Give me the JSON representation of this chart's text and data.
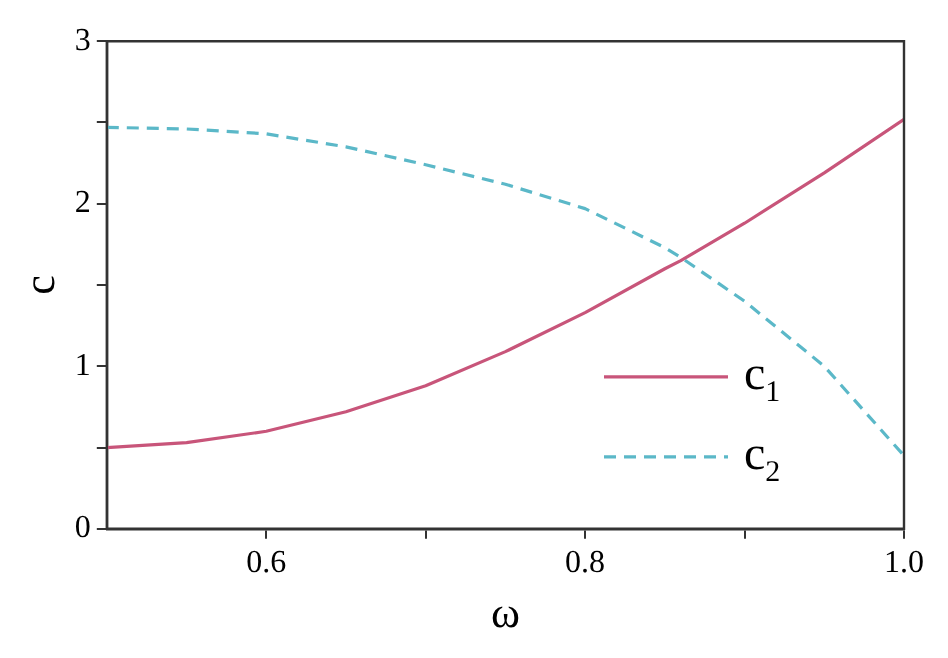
{
  "chart_data": {
    "type": "line",
    "xlabel": "ω",
    "ylabel": "c",
    "x": [
      0.5,
      0.55,
      0.6,
      0.65,
      0.7,
      0.75,
      0.8,
      0.85,
      0.86,
      0.9,
      0.95,
      1.0
    ],
    "series": [
      {
        "name": "c$_{1}$",
        "color": "#c8557a",
        "line_style": "solid",
        "values": [
          0.5,
          0.53,
          0.6,
          0.72,
          0.88,
          1.09,
          1.33,
          1.6,
          1.65,
          1.88,
          2.19,
          2.52
        ]
      },
      {
        "name": "c$_{2}$",
        "color": "#5bb8c8",
        "line_style": "dashed",
        "values": [
          2.47,
          2.46,
          2.43,
          2.35,
          2.24,
          2.12,
          1.97,
          1.73,
          1.67,
          1.4,
          1.0,
          0.45
        ]
      }
    ],
    "xlim": [
      0.5,
      1.0
    ],
    "ylim": [
      0,
      3
    ],
    "xticks": [
      0.6,
      {
        "value": 0.7,
        "label": null
      },
      0.8,
      {
        "value": 0.9,
        "label": null
      },
      {
        "value": 1,
        "label": "1.0"
      }
    ],
    "yticks": [
      0,
      {
        "value": 0.5,
        "label": null
      },
      1,
      {
        "value": 1.5,
        "label": null
      },
      2,
      {
        "value": 2.5,
        "label": null
      },
      3
    ],
    "marker": "none",
    "grid": false,
    "legend": "bottom right"
  }
}
